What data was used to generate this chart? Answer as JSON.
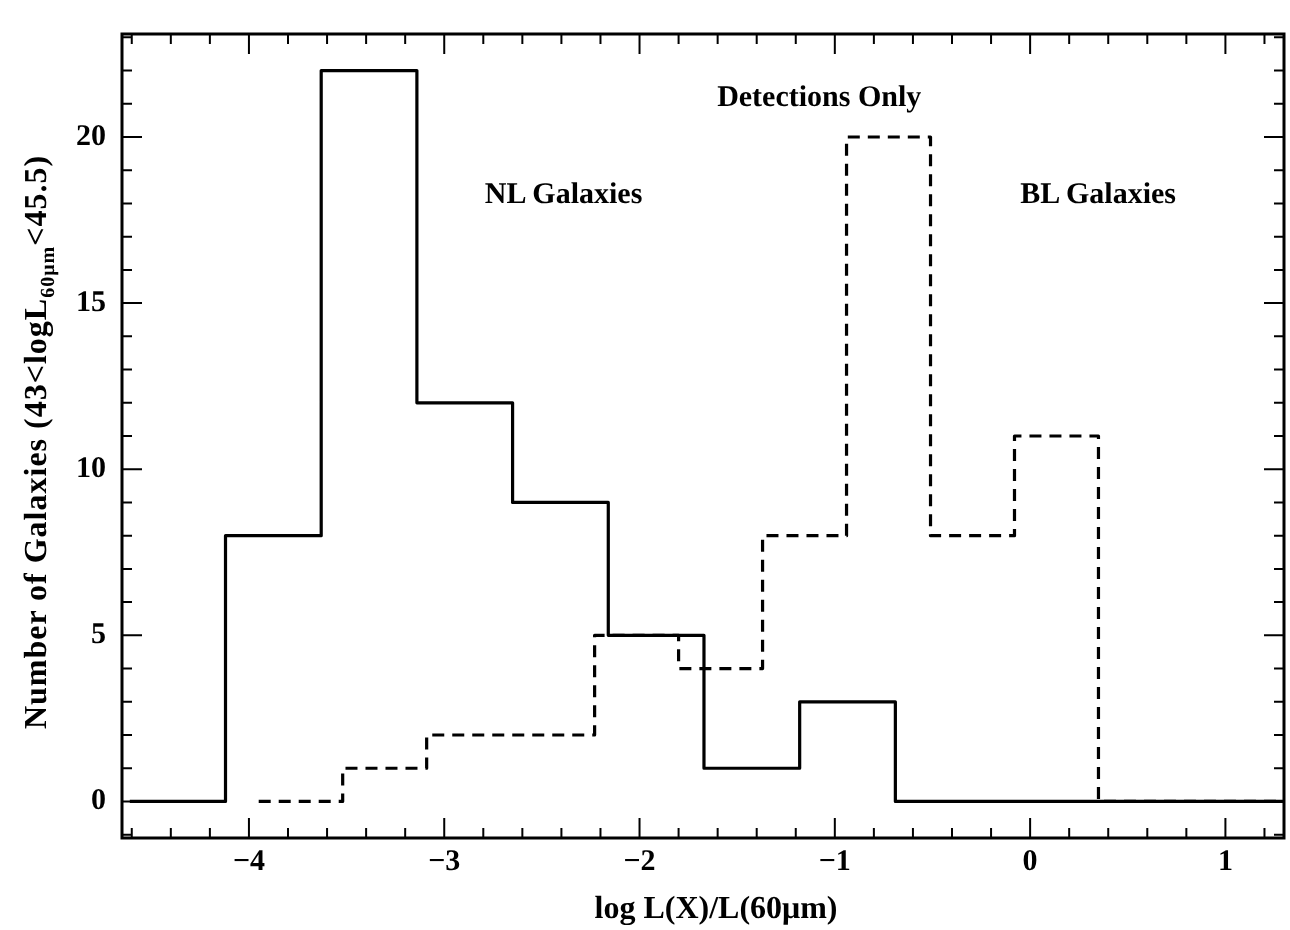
{
  "chart_data": {
    "type": "step",
    "xlabel": "log L(X)/L(60μm)",
    "ylabel": "Number of Galaxies (43<logL$_{60μm}$<45.5)",
    "annotations": [
      "Detections Only"
    ],
    "series": [
      {
        "name": "NL Galaxies",
        "color": "#000000",
        "line_style": "solid",
        "x": [
          -4.61,
          -4.12,
          -3.63,
          -3.14,
          -2.65,
          -2.16,
          -1.67,
          -1.18,
          -0.69,
          -0.2,
          0.29,
          0.78,
          1.3
        ],
        "values": [
          0,
          8,
          22,
          12,
          9,
          5,
          1,
          3,
          0,
          0,
          0,
          0,
          0
        ]
      },
      {
        "name": "BL Galaxies",
        "color": "#000000",
        "line_style": "dashed",
        "x": [
          -3.95,
          -3.52,
          -3.09,
          -2.66,
          -2.23,
          -1.8,
          -1.37,
          -0.94,
          -0.51,
          -0.08,
          0.35,
          0.78,
          1.3
        ],
        "values": [
          0,
          1,
          2,
          2,
          5,
          4,
          8,
          20,
          8,
          11,
          0,
          0,
          0
        ]
      }
    ],
    "xlim": [
      -4.65,
      1.3
    ],
    "ylim": [
      -1.1,
      23.1
    ],
    "xticks": [
      {
        "value": -4.6,
        "label": null
      },
      {
        "value": -4.4,
        "label": null
      },
      {
        "value": -4.2,
        "label": null
      },
      {
        "value": -4,
        "label": "−4"
      },
      {
        "value": -3.8,
        "label": null
      },
      {
        "value": -3.6,
        "label": null
      },
      {
        "value": -3.4,
        "label": null
      },
      {
        "value": -3.2,
        "label": null
      },
      {
        "value": -3,
        "label": "−3"
      },
      {
        "value": -2.8,
        "label": null
      },
      {
        "value": -2.6,
        "label": null
      },
      {
        "value": -2.4,
        "label": null
      },
      {
        "value": -2.2,
        "label": null
      },
      {
        "value": -2,
        "label": "−2"
      },
      {
        "value": -1.8,
        "label": null
      },
      {
        "value": -1.6,
        "label": null
      },
      {
        "value": -1.4,
        "label": null
      },
      {
        "value": -1.2,
        "label": null
      },
      {
        "value": -1,
        "label": "−1"
      },
      {
        "value": -0.8,
        "label": null
      },
      {
        "value": -0.6,
        "label": null
      },
      {
        "value": -0.4,
        "label": null
      },
      {
        "value": -0.2,
        "label": null
      },
      0,
      {
        "value": 0.2,
        "label": null
      },
      {
        "value": 0.4,
        "label": null
      },
      {
        "value": 0.6,
        "label": null
      },
      {
        "value": 0.8,
        "label": null
      },
      1,
      {
        "value": 1.2,
        "label": null
      }
    ],
    "yticks": [
      {
        "value": -1,
        "label": null
      },
      0,
      {
        "value": 1,
        "label": null
      },
      {
        "value": 2,
        "label": null
      },
      {
        "value": 3,
        "label": null
      },
      {
        "value": 4,
        "label": null
      },
      5,
      {
        "value": 6,
        "label": null
      },
      {
        "value": 7,
        "label": null
      },
      {
        "value": 8,
        "label": null
      },
      {
        "value": 9,
        "label": null
      },
      10,
      {
        "value": 11,
        "label": null
      },
      {
        "value": 12,
        "label": null
      },
      {
        "value": 13,
        "label": null
      },
      {
        "value": 14,
        "label": null
      },
      15,
      {
        "value": 16,
        "label": null
      },
      {
        "value": 17,
        "label": null
      },
      {
        "value": 18,
        "label": null
      },
      {
        "value": 19,
        "label": null
      },
      20,
      {
        "value": 21,
        "label": null
      },
      {
        "value": 22,
        "label": null
      },
      {
        "value": 23,
        "label": null
      }
    ],
    "grid": false,
    "legend": false
  }
}
